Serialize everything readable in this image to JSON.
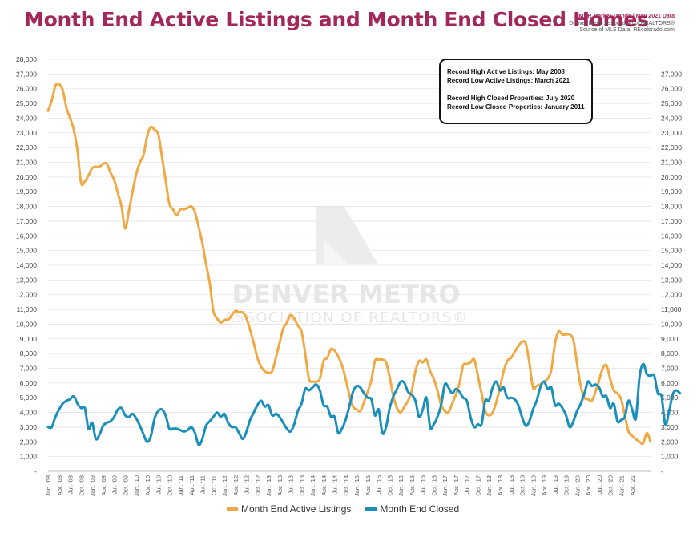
{
  "header": {
    "title": "Month End Active Listings and Month End Closed Homes",
    "meta_line1": "DMAR Market Trends | May 2021 Data",
    "meta_line2": "Denver Metro Association of REALTORS®",
    "meta_line3": "Source of MLS Data: REcolorado.com"
  },
  "watermark": {
    "line1": "DENVER METRO",
    "line2": "ASSOCIATION OF REALTORS®"
  },
  "records": {
    "line1": "Record High Active Listings: May 2008",
    "line2": "Record Low Active Listings: March 2021",
    "line3": "Record High Closed Properties: July 2020",
    "line4": "Record Low Closed Properties: January 2011"
  },
  "colors": {
    "active": "#f0aa45",
    "closed": "#1b8fbc",
    "title": "#a3275a",
    "grid": "#e3e3e3"
  },
  "chart_data": {
    "type": "line",
    "title": "Month End Active Listings and Month End Closed Homes",
    "left_axis": {
      "range": [
        0,
        28000
      ],
      "step": 1000,
      "ticks": [
        "-",
        "1,000",
        "2,000",
        "3,000",
        "4,000",
        "5,000",
        "6,000",
        "7,000",
        "8,000",
        "9,000",
        "10,000",
        "11,000",
        "12,000",
        "13,000",
        "14,000",
        "15,000",
        "16,000",
        "17,000",
        "18,000",
        "19,000",
        "20,000",
        "21,000",
        "22,000",
        "23,000",
        "24,000",
        "25,000",
        "26,000",
        "27,000",
        "28,000"
      ]
    },
    "right_axis": {
      "range": [
        -1000,
        27000
      ],
      "step": 1000,
      "ticks": [
        "-",
        "1,000",
        "2,000",
        "3,000",
        "4,000",
        "5,000",
        "6,000",
        "7,000",
        "8,000",
        "9,000",
        "10,000",
        "11,000",
        "12,000",
        "13,000",
        "14,000",
        "15,000",
        "16,000",
        "17,000",
        "18,000",
        "19,000",
        "20,000",
        "21,000",
        "22,000",
        "23,000",
        "24,000",
        "25,000",
        "26,000",
        "27,000"
      ]
    },
    "x_tick_labels": [
      "Jan. '08",
      "Apr. '08",
      "Jul. '08",
      "Oct. '08",
      "Jan. '09",
      "Apr. '09",
      "Jul. '09",
      "Oct. '09",
      "Jan. '10",
      "Apr. '10",
      "Jul. '10",
      "Oct. '10",
      "Jan. '11",
      "Apr. '11",
      "Jul. '11",
      "Oct. '11",
      "Jan. '12",
      "Apr. '12",
      "Jul. '12",
      "Oct. '12",
      "Jan. '13",
      "Apr. '13",
      "Jul. '13",
      "Oct. '13",
      "Jan. '14",
      "Apr. '14",
      "Jul. '14",
      "Oct. '14",
      "Jan. '15",
      "Apr. '15",
      "Jul. '15",
      "Oct. '15",
      "Jan. '16",
      "Apr. '16",
      "Jul. '16",
      "Oct. '16",
      "Jan. '17",
      "Apr. '17",
      "Jul. '17",
      "Oct. '17",
      "Jan. '18",
      "Apr. '18",
      "Jul. '18",
      "Oct. '18",
      "Jan. '19",
      "Apr. '19",
      "Jul. '19",
      "Oct. '19",
      "Jan. '20",
      "Apr. '20",
      "Jul. '20",
      "Oct. '20",
      "Jan. '21",
      "Apr. '21"
    ],
    "grid": true,
    "legend_position": "bottom",
    "series": [
      {
        "name": "Month End Active Listings",
        "axis": "left",
        "values": [
          24500,
          25200,
          26200,
          26300,
          25900,
          24700,
          24000,
          23200,
          21800,
          19600,
          19700,
          20100,
          20600,
          20700,
          20700,
          20900,
          20900,
          20300,
          19800,
          18900,
          18000,
          16500,
          17700,
          19000,
          20200,
          21000,
          21500,
          22800,
          23400,
          23200,
          22900,
          21400,
          19800,
          18200,
          17800,
          17400,
          17800,
          17800,
          17900,
          18000,
          17600,
          16600,
          15500,
          14100,
          12800,
          10900,
          10400,
          10100,
          10300,
          10300,
          10600,
          10900,
          10800,
          10800,
          10400,
          9600,
          8700,
          7700,
          7100,
          6800,
          6700,
          6800,
          7700,
          8700,
          9700,
          10100,
          10600,
          10400,
          9900,
          9500,
          8000,
          6300,
          6100,
          6100,
          6300,
          7500,
          7700,
          8300,
          8200,
          7800,
          7200,
          6300,
          5200,
          4400,
          4200,
          4100,
          4700,
          5400,
          6200,
          7500,
          7600,
          7600,
          7400,
          6400,
          5100,
          4300,
          4000,
          4400,
          4800,
          5500,
          6800,
          7500,
          7400,
          7600,
          6800,
          6300,
          5500,
          4500,
          4100,
          4000,
          4600,
          5200,
          6000,
          7200,
          7300,
          7400,
          7600,
          6500,
          5300,
          4100,
          3800,
          4000,
          4700,
          5700,
          6800,
          7500,
          7700,
          8100,
          8500,
          8800,
          8700,
          7400,
          5700,
          5800,
          5900,
          6100,
          6300,
          6900,
          8700,
          9500,
          9300,
          9300,
          9300,
          8900,
          7300,
          5800,
          5000,
          4900,
          4800,
          5400,
          6200,
          7000,
          7200,
          6300,
          5500,
          5300,
          4900,
          3800,
          2700,
          2400,
          2200,
          2000,
          1900,
          2600,
          2000
        ]
      },
      {
        "name": "Month End Closed",
        "axis": "right",
        "values": [
          2000,
          2000,
          2700,
          3200,
          3600,
          3800,
          3900,
          4100,
          3600,
          3300,
          3300,
          1900,
          2300,
          1200,
          1500,
          2100,
          2300,
          2400,
          2700,
          3200,
          3300,
          2800,
          2700,
          2900,
          2600,
          2100,
          1500,
          1000,
          1400,
          2600,
          3100,
          3200,
          2800,
          1900,
          1900,
          1900,
          1800,
          1700,
          1800,
          2000,
          1600,
          800,
          1200,
          2100,
          2400,
          2700,
          3000,
          2700,
          2900,
          2300,
          2000,
          2000,
          1600,
          1200,
          1700,
          2500,
          3000,
          3500,
          3800,
          3400,
          3500,
          2800,
          2900,
          2700,
          2300,
          1900,
          1700,
          2200,
          3100,
          3600,
          4600,
          4500,
          4700,
          4900,
          4500,
          3500,
          3400,
          2700,
          2700,
          1600,
          1900,
          2500,
          3400,
          4400,
          4800,
          4700,
          4300,
          4000,
          3900,
          2800,
          3200,
          1600,
          2000,
          3300,
          4100,
          4600,
          5100,
          5000,
          4400,
          4200,
          3800,
          2700,
          3200,
          4000,
          2000,
          2200,
          2700,
          3500,
          4900,
          4700,
          4300,
          4600,
          4400,
          4000,
          3800,
          2700,
          2000,
          2200,
          2200,
          3800,
          3800,
          4700,
          5100,
          4500,
          4700,
          4000,
          4000,
          3900,
          3500,
          2700,
          2100,
          2400,
          3200,
          3800,
          4700,
          5100,
          4600,
          4700,
          3500,
          3600,
          3300,
          2800,
          2000,
          2400,
          3100,
          3600,
          4300,
          5100,
          4800,
          4900,
          4700,
          4100,
          4100,
          3300,
          3600,
          2400,
          2500,
          2700,
          3800,
          3200,
          2600,
          5400,
          6300,
          5600,
          5500,
          5500,
          4300,
          4100,
          2200,
          3000,
          4200,
          4500,
          4300
        ]
      }
    ]
  }
}
